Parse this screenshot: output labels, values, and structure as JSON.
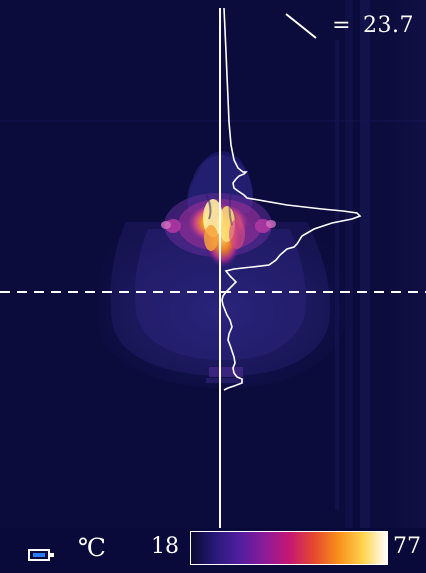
{
  "readout": {
    "value": "23.7",
    "prefix": "=",
    "icon": "diagonal-line-icon"
  },
  "bottom_bar": {
    "unit": "℃",
    "scale_min": "18",
    "scale_max": "77",
    "battery_icon": "battery-icon"
  },
  "colors": {
    "background": "#0b0b3c",
    "overlay": "#ffffff",
    "hot": "#ffe46b",
    "warm": "#f06d1f",
    "mid": "#8d2ea3"
  }
}
